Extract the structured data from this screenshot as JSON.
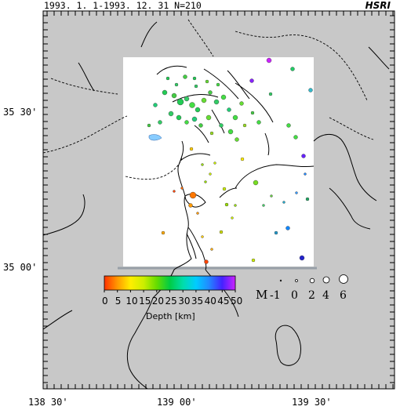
{
  "header": {
    "title": "1993. 1. 1-1993. 12. 31  N=210",
    "brand": "HSRI"
  },
  "axes": {
    "lat_labels": [
      "35 30'",
      "35 00'"
    ],
    "lon_labels": [
      "138 30'",
      "139 00'",
      "139 30'"
    ]
  },
  "depth_scale": {
    "title": "Depth [km]",
    "ticks": [
      "0",
      "5",
      "10",
      "15",
      "20",
      "25",
      "30",
      "35",
      "40",
      "45",
      "50"
    ],
    "colors": [
      "#ff3300",
      "#ff9900",
      "#ffee00",
      "#ccee00",
      "#66dd00",
      "#00cc44",
      "#00ddaa",
      "#00ccff",
      "#2288ff",
      "#4422ff",
      "#cc22ff"
    ]
  },
  "magnitude_scale": {
    "title": "M",
    "ticks": [
      "-1",
      "0",
      "2",
      "4",
      "6"
    ]
  },
  "colors": {
    "land": "#c8c8c8",
    "study_area": "#ffffff",
    "coastline": "#000000"
  }
}
